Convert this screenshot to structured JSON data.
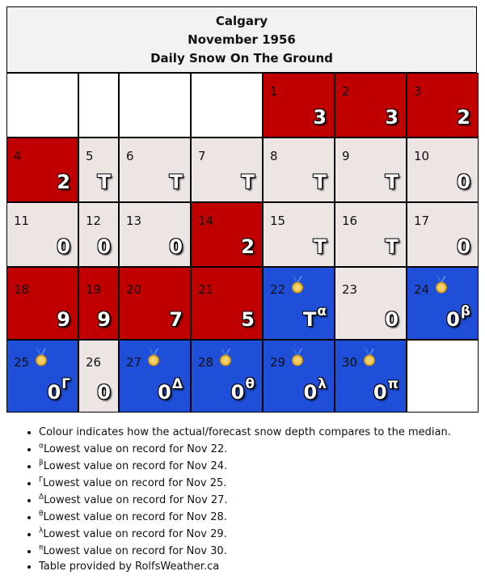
{
  "header": {
    "city": "Calgary",
    "period": "November 1956",
    "subtitle": "Daily Snow On The Ground"
  },
  "legend_colors": {
    "above_median": "#c00000",
    "near_median": "#ede4e4",
    "below_median": "#1f4fd8"
  },
  "days": [
    {
      "day": "",
      "value": "",
      "sup": "",
      "color": "empty",
      "medal": false
    },
    {
      "day": "",
      "value": "",
      "sup": "",
      "color": "empty",
      "medal": false
    },
    {
      "day": "",
      "value": "",
      "sup": "",
      "color": "empty",
      "medal": false
    },
    {
      "day": "",
      "value": "",
      "sup": "",
      "color": "empty",
      "medal": false
    },
    {
      "day": "1",
      "value": "3",
      "sup": "",
      "color": "red",
      "medal": false
    },
    {
      "day": "2",
      "value": "3",
      "sup": "",
      "color": "red",
      "medal": false
    },
    {
      "day": "3",
      "value": "2",
      "sup": "",
      "color": "red",
      "medal": false
    },
    {
      "day": "4",
      "value": "2",
      "sup": "",
      "color": "red",
      "medal": false
    },
    {
      "day": "5",
      "value": "T",
      "sup": "",
      "color": "grey",
      "medal": false
    },
    {
      "day": "6",
      "value": "T",
      "sup": "",
      "color": "grey",
      "medal": false
    },
    {
      "day": "7",
      "value": "T",
      "sup": "",
      "color": "grey",
      "medal": false
    },
    {
      "day": "8",
      "value": "T",
      "sup": "",
      "color": "grey",
      "medal": false
    },
    {
      "day": "9",
      "value": "T",
      "sup": "",
      "color": "grey",
      "medal": false
    },
    {
      "day": "10",
      "value": "0",
      "sup": "",
      "color": "grey",
      "medal": false
    },
    {
      "day": "11",
      "value": "0",
      "sup": "",
      "color": "grey",
      "medal": false
    },
    {
      "day": "12",
      "value": "0",
      "sup": "",
      "color": "grey",
      "medal": false
    },
    {
      "day": "13",
      "value": "0",
      "sup": "",
      "color": "grey",
      "medal": false
    },
    {
      "day": "14",
      "value": "2",
      "sup": "",
      "color": "red",
      "medal": false
    },
    {
      "day": "15",
      "value": "T",
      "sup": "",
      "color": "grey",
      "medal": false
    },
    {
      "day": "16",
      "value": "T",
      "sup": "",
      "color": "grey",
      "medal": false
    },
    {
      "day": "17",
      "value": "0",
      "sup": "",
      "color": "grey",
      "medal": false
    },
    {
      "day": "18",
      "value": "9",
      "sup": "",
      "color": "red",
      "medal": false
    },
    {
      "day": "19",
      "value": "9",
      "sup": "",
      "color": "red",
      "medal": false
    },
    {
      "day": "20",
      "value": "7",
      "sup": "",
      "color": "red",
      "medal": false
    },
    {
      "day": "21",
      "value": "5",
      "sup": "",
      "color": "red",
      "medal": false
    },
    {
      "day": "22",
      "value": "T",
      "sup": "α",
      "color": "blue",
      "medal": true
    },
    {
      "day": "23",
      "value": "0",
      "sup": "",
      "color": "grey",
      "medal": false
    },
    {
      "day": "24",
      "value": "0",
      "sup": "β",
      "color": "blue",
      "medal": true
    },
    {
      "day": "25",
      "value": "0",
      "sup": "Γ",
      "color": "blue",
      "medal": true
    },
    {
      "day": "26",
      "value": "0",
      "sup": "",
      "color": "grey",
      "medal": false
    },
    {
      "day": "27",
      "value": "0",
      "sup": "Δ",
      "color": "blue",
      "medal": true
    },
    {
      "day": "28",
      "value": "0",
      "sup": "θ",
      "color": "blue",
      "medal": true
    },
    {
      "day": "29",
      "value": "0",
      "sup": "λ",
      "color": "blue",
      "medal": true
    },
    {
      "day": "30",
      "value": "0",
      "sup": "π",
      "color": "blue",
      "medal": true
    },
    {
      "day": "",
      "value": "",
      "sup": "",
      "color": "empty",
      "medal": false
    }
  ],
  "notes": [
    {
      "sup": "",
      "text": "Colour indicates how the actual/forecast snow depth compares to the median."
    },
    {
      "sup": "α",
      "text": "Lowest value on record for Nov 22."
    },
    {
      "sup": "β",
      "text": "Lowest value on record for Nov 24."
    },
    {
      "sup": "Γ",
      "text": "Lowest value on record for Nov 25."
    },
    {
      "sup": "Δ",
      "text": "Lowest value on record for Nov 27."
    },
    {
      "sup": "θ",
      "text": "Lowest value on record for Nov 28."
    },
    {
      "sup": "λ",
      "text": "Lowest value on record for Nov 29."
    },
    {
      "sup": "π",
      "text": "Lowest value on record for Nov 30."
    },
    {
      "sup": "",
      "text": "Table provided by RolfsWeather.ca"
    }
  ]
}
